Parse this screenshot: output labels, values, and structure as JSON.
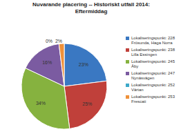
{
  "chart_data": {
    "type": "pie",
    "title": "Nuvarande placering -- Historiskt utfall 2014: Eftermiddag",
    "categories": [
      "Lokaliseringspunkt: 228 Frösunda, Haga Norra",
      "Lokaliseringspunkt: 238 Lilla Essingen",
      "Lokaliseringspunkt: 245 Åby",
      "Lokaliseringspunkt: 247 Nynäsvägen",
      "Lokaliseringspunkt: 252 Värtan",
      "Lokaliseringspunkt: 253 Frescati"
    ],
    "values": [
      23,
      25,
      34,
      16,
      0,
      2
    ],
    "value_labels": [
      "23%",
      "25%",
      "34%",
      "16%",
      "0%",
      "2%"
    ],
    "colors": [
      "#3A78C2",
      "#C0403A",
      "#86B23F",
      "#7B5BA1",
      "#3DA9C9",
      "#EF913A"
    ],
    "data_labels": true,
    "legend": "right"
  }
}
